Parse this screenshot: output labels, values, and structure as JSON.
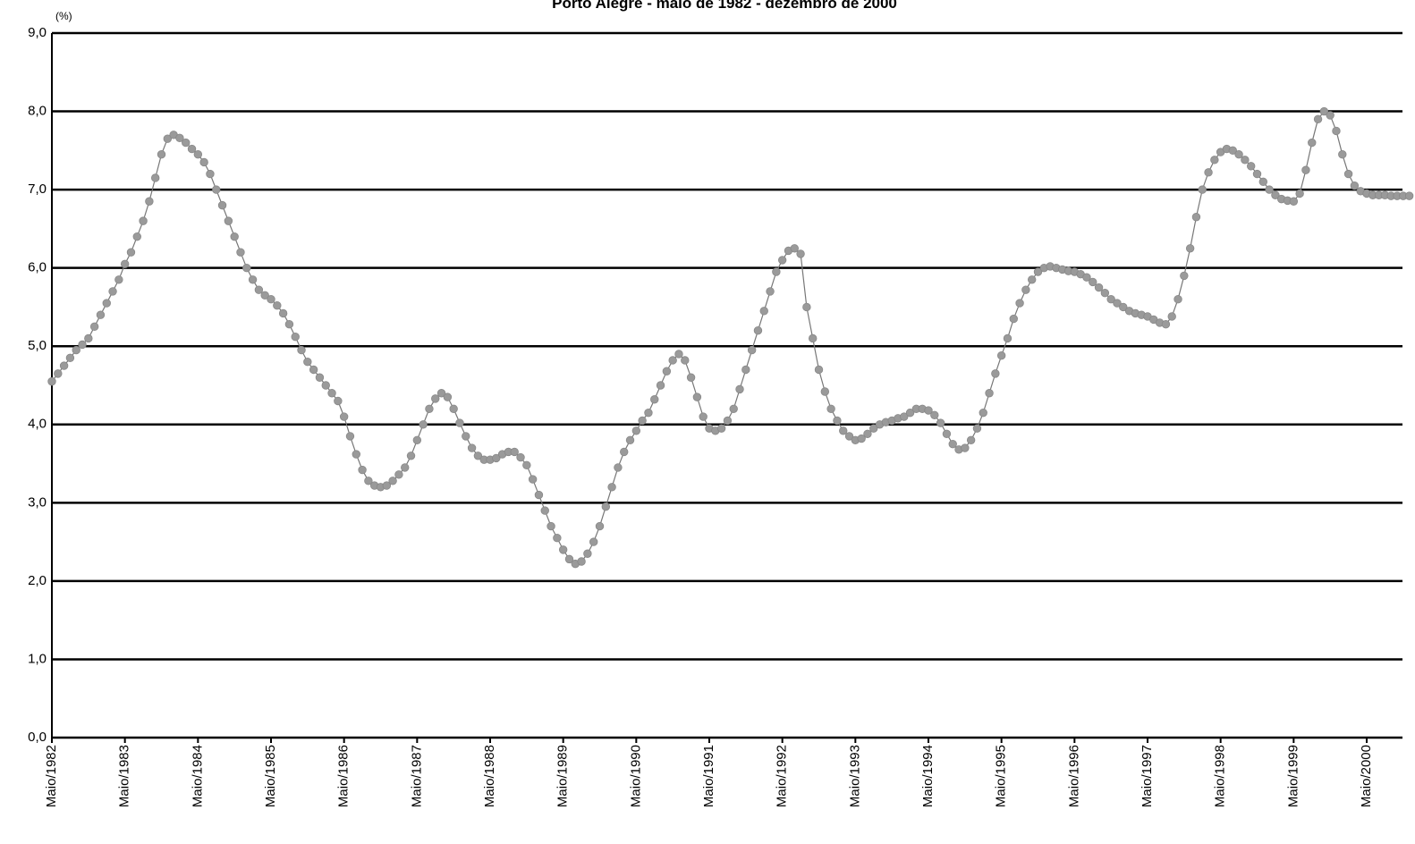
{
  "chart_data": {
    "type": "line",
    "title": "Porto Alegre - maio de 1982 - dezembro de 2000",
    "y_label": "(%)",
    "categories": [
      "Maio/1982",
      null,
      null,
      null,
      null,
      null,
      null,
      null,
      null,
      null,
      null,
      null,
      "Maio/1983",
      null,
      null,
      null,
      null,
      null,
      null,
      null,
      null,
      null,
      null,
      null,
      "Maio/1984",
      null,
      null,
      null,
      null,
      null,
      null,
      null,
      null,
      null,
      null,
      null,
      "Maio/1985",
      null,
      null,
      null,
      null,
      null,
      null,
      null,
      null,
      null,
      null,
      null,
      "Maio/1986",
      null,
      null,
      null,
      null,
      null,
      null,
      null,
      null,
      null,
      null,
      null,
      "Maio/1987",
      null,
      null,
      null,
      null,
      null,
      null,
      null,
      null,
      null,
      null,
      null,
      "Maio/1988",
      null,
      null,
      null,
      null,
      null,
      null,
      null,
      null,
      null,
      null,
      null,
      "Maio/1989",
      null,
      null,
      null,
      null,
      null,
      null,
      null,
      null,
      null,
      null,
      null,
      "Maio/1990",
      null,
      null,
      null,
      null,
      null,
      null,
      null,
      null,
      null,
      null,
      null,
      "Maio/1991",
      null,
      null,
      null,
      null,
      null,
      null,
      null,
      null,
      null,
      null,
      null,
      "Maio/1992",
      null,
      null,
      null,
      null,
      null,
      null,
      null,
      null,
      null,
      null,
      null,
      "Maio/1993",
      null,
      null,
      null,
      null,
      null,
      null,
      null,
      null,
      null,
      null,
      null,
      "Maio/1994",
      null,
      null,
      null,
      null,
      null,
      null,
      null,
      null,
      null,
      null,
      null,
      "Maio/1995",
      null,
      null,
      null,
      null,
      null,
      null,
      null,
      null,
      null,
      null,
      null,
      "Maio/1996",
      null,
      null,
      null,
      null,
      null,
      null,
      null,
      null,
      null,
      null,
      null,
      "Maio/1997",
      null,
      null,
      null,
      null,
      null,
      null,
      null,
      null,
      null,
      null,
      null,
      "Maio/1998",
      null,
      null,
      null,
      null,
      null,
      null,
      null,
      null,
      null,
      null,
      null,
      "Maio/1999",
      null,
      null,
      null,
      null,
      null,
      null,
      null,
      null,
      null,
      null,
      null,
      "Maio/2000",
      null,
      null,
      null,
      null,
      null,
      null,
      null
    ],
    "values": [
      4.55,
      4.65,
      4.75,
      4.85,
      4.95,
      5.02,
      5.1,
      5.25,
      5.4,
      5.55,
      5.7,
      5.85,
      6.05,
      6.2,
      6.4,
      6.6,
      6.85,
      7.15,
      7.45,
      7.65,
      7.7,
      7.66,
      7.6,
      7.52,
      7.45,
      7.35,
      7.2,
      7.0,
      6.8,
      6.6,
      6.4,
      6.2,
      6.0,
      5.85,
      5.72,
      5.65,
      5.6,
      5.52,
      5.42,
      5.28,
      5.12,
      4.95,
      4.8,
      4.7,
      4.6,
      4.5,
      4.4,
      4.3,
      4.1,
      3.85,
      3.62,
      3.42,
      3.28,
      3.22,
      3.2,
      3.22,
      3.28,
      3.36,
      3.45,
      3.6,
      3.8,
      4.0,
      4.2,
      4.33,
      4.4,
      4.35,
      4.2,
      4.02,
      3.85,
      3.7,
      3.6,
      3.55,
      3.55,
      3.57,
      3.62,
      3.65,
      3.65,
      3.58,
      3.48,
      3.3,
      3.1,
      2.9,
      2.7,
      2.55,
      2.4,
      2.28,
      2.22,
      2.25,
      2.35,
      2.5,
      2.7,
      2.95,
      3.2,
      3.45,
      3.65,
      3.8,
      3.92,
      4.05,
      4.15,
      4.32,
      4.5,
      4.68,
      4.82,
      4.9,
      4.82,
      4.6,
      4.35,
      4.1,
      3.95,
      3.92,
      3.95,
      4.05,
      4.2,
      4.45,
      4.7,
      4.95,
      5.2,
      5.45,
      5.7,
      5.95,
      6.1,
      6.22,
      6.25,
      6.18,
      5.5,
      5.1,
      4.7,
      4.42,
      4.2,
      4.05,
      3.92,
      3.85,
      3.8,
      3.82,
      3.88,
      3.95,
      4.0,
      4.03,
      4.05,
      4.08,
      4.1,
      4.15,
      4.2,
      4.2,
      4.18,
      4.12,
      4.02,
      3.88,
      3.75,
      3.68,
      3.7,
      3.8,
      3.95,
      4.15,
      4.4,
      4.65,
      4.88,
      5.1,
      5.35,
      5.55,
      5.72,
      5.85,
      5.95,
      6.0,
      6.02,
      6.0,
      5.98,
      5.96,
      5.95,
      5.92,
      5.88,
      5.82,
      5.75,
      5.68,
      5.6,
      5.55,
      5.5,
      5.45,
      5.42,
      5.4,
      5.38,
      5.34,
      5.3,
      5.28,
      5.38,
      5.6,
      5.9,
      6.25,
      6.65,
      7.0,
      7.22,
      7.38,
      7.48,
      7.52,
      7.5,
      7.45,
      7.38,
      7.3,
      7.2,
      7.1,
      7.0,
      6.93,
      6.88,
      6.86,
      6.85,
      6.95,
      7.25,
      7.6,
      7.9,
      8.0,
      7.95,
      7.75,
      7.45,
      7.2,
      7.05,
      6.98,
      6.95,
      6.93,
      6.93,
      6.93,
      6.92,
      6.92,
      6.92,
      6.92
    ],
    "color": "#9a9a9a",
    "ylim": [
      0,
      9
    ],
    "yticks": [
      {
        "value": 0,
        "label": "0,0"
      },
      {
        "value": 1,
        "label": "1,0"
      },
      {
        "value": 2,
        "label": "2,0"
      },
      {
        "value": 3,
        "label": "3,0"
      },
      {
        "value": 4,
        "label": "4,0"
      },
      {
        "value": 5,
        "label": "5,0"
      },
      {
        "value": 6,
        "label": "6,0"
      },
      {
        "value": 7,
        "label": "7,0"
      },
      {
        "value": 8,
        "label": "8,0"
      },
      {
        "value": 9,
        "label": "9,0"
      }
    ],
    "grid": true
  }
}
